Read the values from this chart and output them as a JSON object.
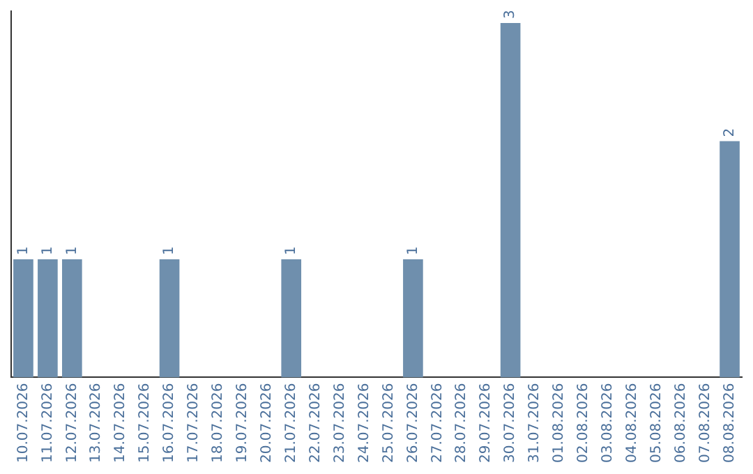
{
  "chart_data": {
    "type": "bar",
    "categories": [
      "10.07.2026",
      "11.07.2026",
      "12.07.2026",
      "13.07.2026",
      "14.07.2026",
      "15.07.2026",
      "16.07.2026",
      "17.07.2026",
      "18.07.2026",
      "19.07.2026",
      "20.07.2026",
      "21.07.2026",
      "22.07.2026",
      "23.07.2026",
      "24.07.2026",
      "25.07.2026",
      "26.07.2026",
      "27.07.2026",
      "28.07.2026",
      "29.07.2026",
      "30.07.2026",
      "31.07.2026",
      "01.08.2026",
      "02.08.2026",
      "03.08.2026",
      "04.08.2026",
      "05.08.2026",
      "06.08.2026",
      "07.08.2026",
      "08.08.2026"
    ],
    "values": [
      1,
      1,
      1,
      0,
      0,
      0,
      1,
      0,
      0,
      0,
      0,
      1,
      0,
      0,
      0,
      0,
      1,
      0,
      0,
      0,
      3,
      0,
      0,
      0,
      0,
      0,
      0,
      0,
      0,
      2
    ],
    "value_labels": [
      "1",
      "1",
      "1",
      null,
      null,
      null,
      "1",
      null,
      null,
      null,
      null,
      "1",
      null,
      null,
      null,
      null,
      "1",
      null,
      null,
      null,
      "3",
      null,
      null,
      null,
      null,
      null,
      null,
      null,
      null,
      "2"
    ],
    "color": "#6f8fad",
    "ylim": [
      0,
      3.1
    ],
    "tick_labels": "x",
    "grid": false,
    "legend": false
  }
}
